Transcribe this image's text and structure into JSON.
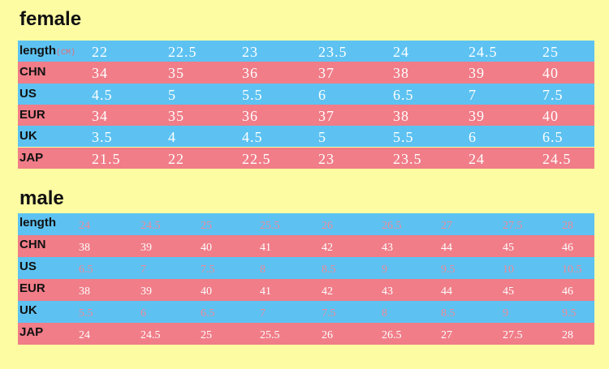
{
  "female": {
    "title": "female",
    "rows": [
      {
        "label": "length",
        "unit": "(CM)",
        "cells": [
          "22",
          "22.5",
          "23",
          "23.5",
          "24",
          "24.5",
          "25"
        ]
      },
      {
        "label": "CHN",
        "cells": [
          "34",
          "35",
          "36",
          "37",
          "38",
          "39",
          "40"
        ]
      },
      {
        "label": "US",
        "cells": [
          "4.5",
          "5",
          "5.5",
          "6",
          "6.5",
          "7",
          "7.5"
        ]
      },
      {
        "label": "EUR",
        "cells": [
          "34",
          "35",
          "36",
          "37",
          "38",
          "39",
          "40"
        ]
      },
      {
        "label": "UK",
        "cells": [
          "3.5",
          "4",
          "4.5",
          "5",
          "5.5",
          "6",
          "6.5"
        ]
      },
      {
        "label": "JAP",
        "cells": [
          "21.5",
          "22",
          "22.5",
          "23",
          "23.5",
          "24",
          "24.5"
        ]
      }
    ]
  },
  "male": {
    "title": "male",
    "rows": [
      {
        "label": "length",
        "cells": [
          "24",
          "24.5",
          "25",
          "25.5",
          "26",
          "26.5",
          "27",
          "27.5",
          "28"
        ]
      },
      {
        "label": "CHN",
        "cells": [
          "38",
          "39",
          "40",
          "41",
          "42",
          "43",
          "44",
          "45",
          "46"
        ]
      },
      {
        "label": "US",
        "cells": [
          "6.5",
          "7",
          "7.5",
          "8",
          "8.5",
          "9",
          "9.5",
          "10",
          "10.5"
        ]
      },
      {
        "label": "EUR",
        "cells": [
          "38",
          "39",
          "40",
          "41",
          "42",
          "43",
          "44",
          "45",
          "46"
        ]
      },
      {
        "label": "UK",
        "cells": [
          "5.5",
          "6",
          "6.5",
          "7",
          "7.5",
          "8",
          "8.5",
          "9",
          "9.5"
        ]
      },
      {
        "label": "JAP",
        "cells": [
          "24",
          "24.5",
          "25",
          "25.5",
          "26",
          "26.5",
          "27",
          "27.5",
          "28"
        ]
      }
    ]
  }
}
